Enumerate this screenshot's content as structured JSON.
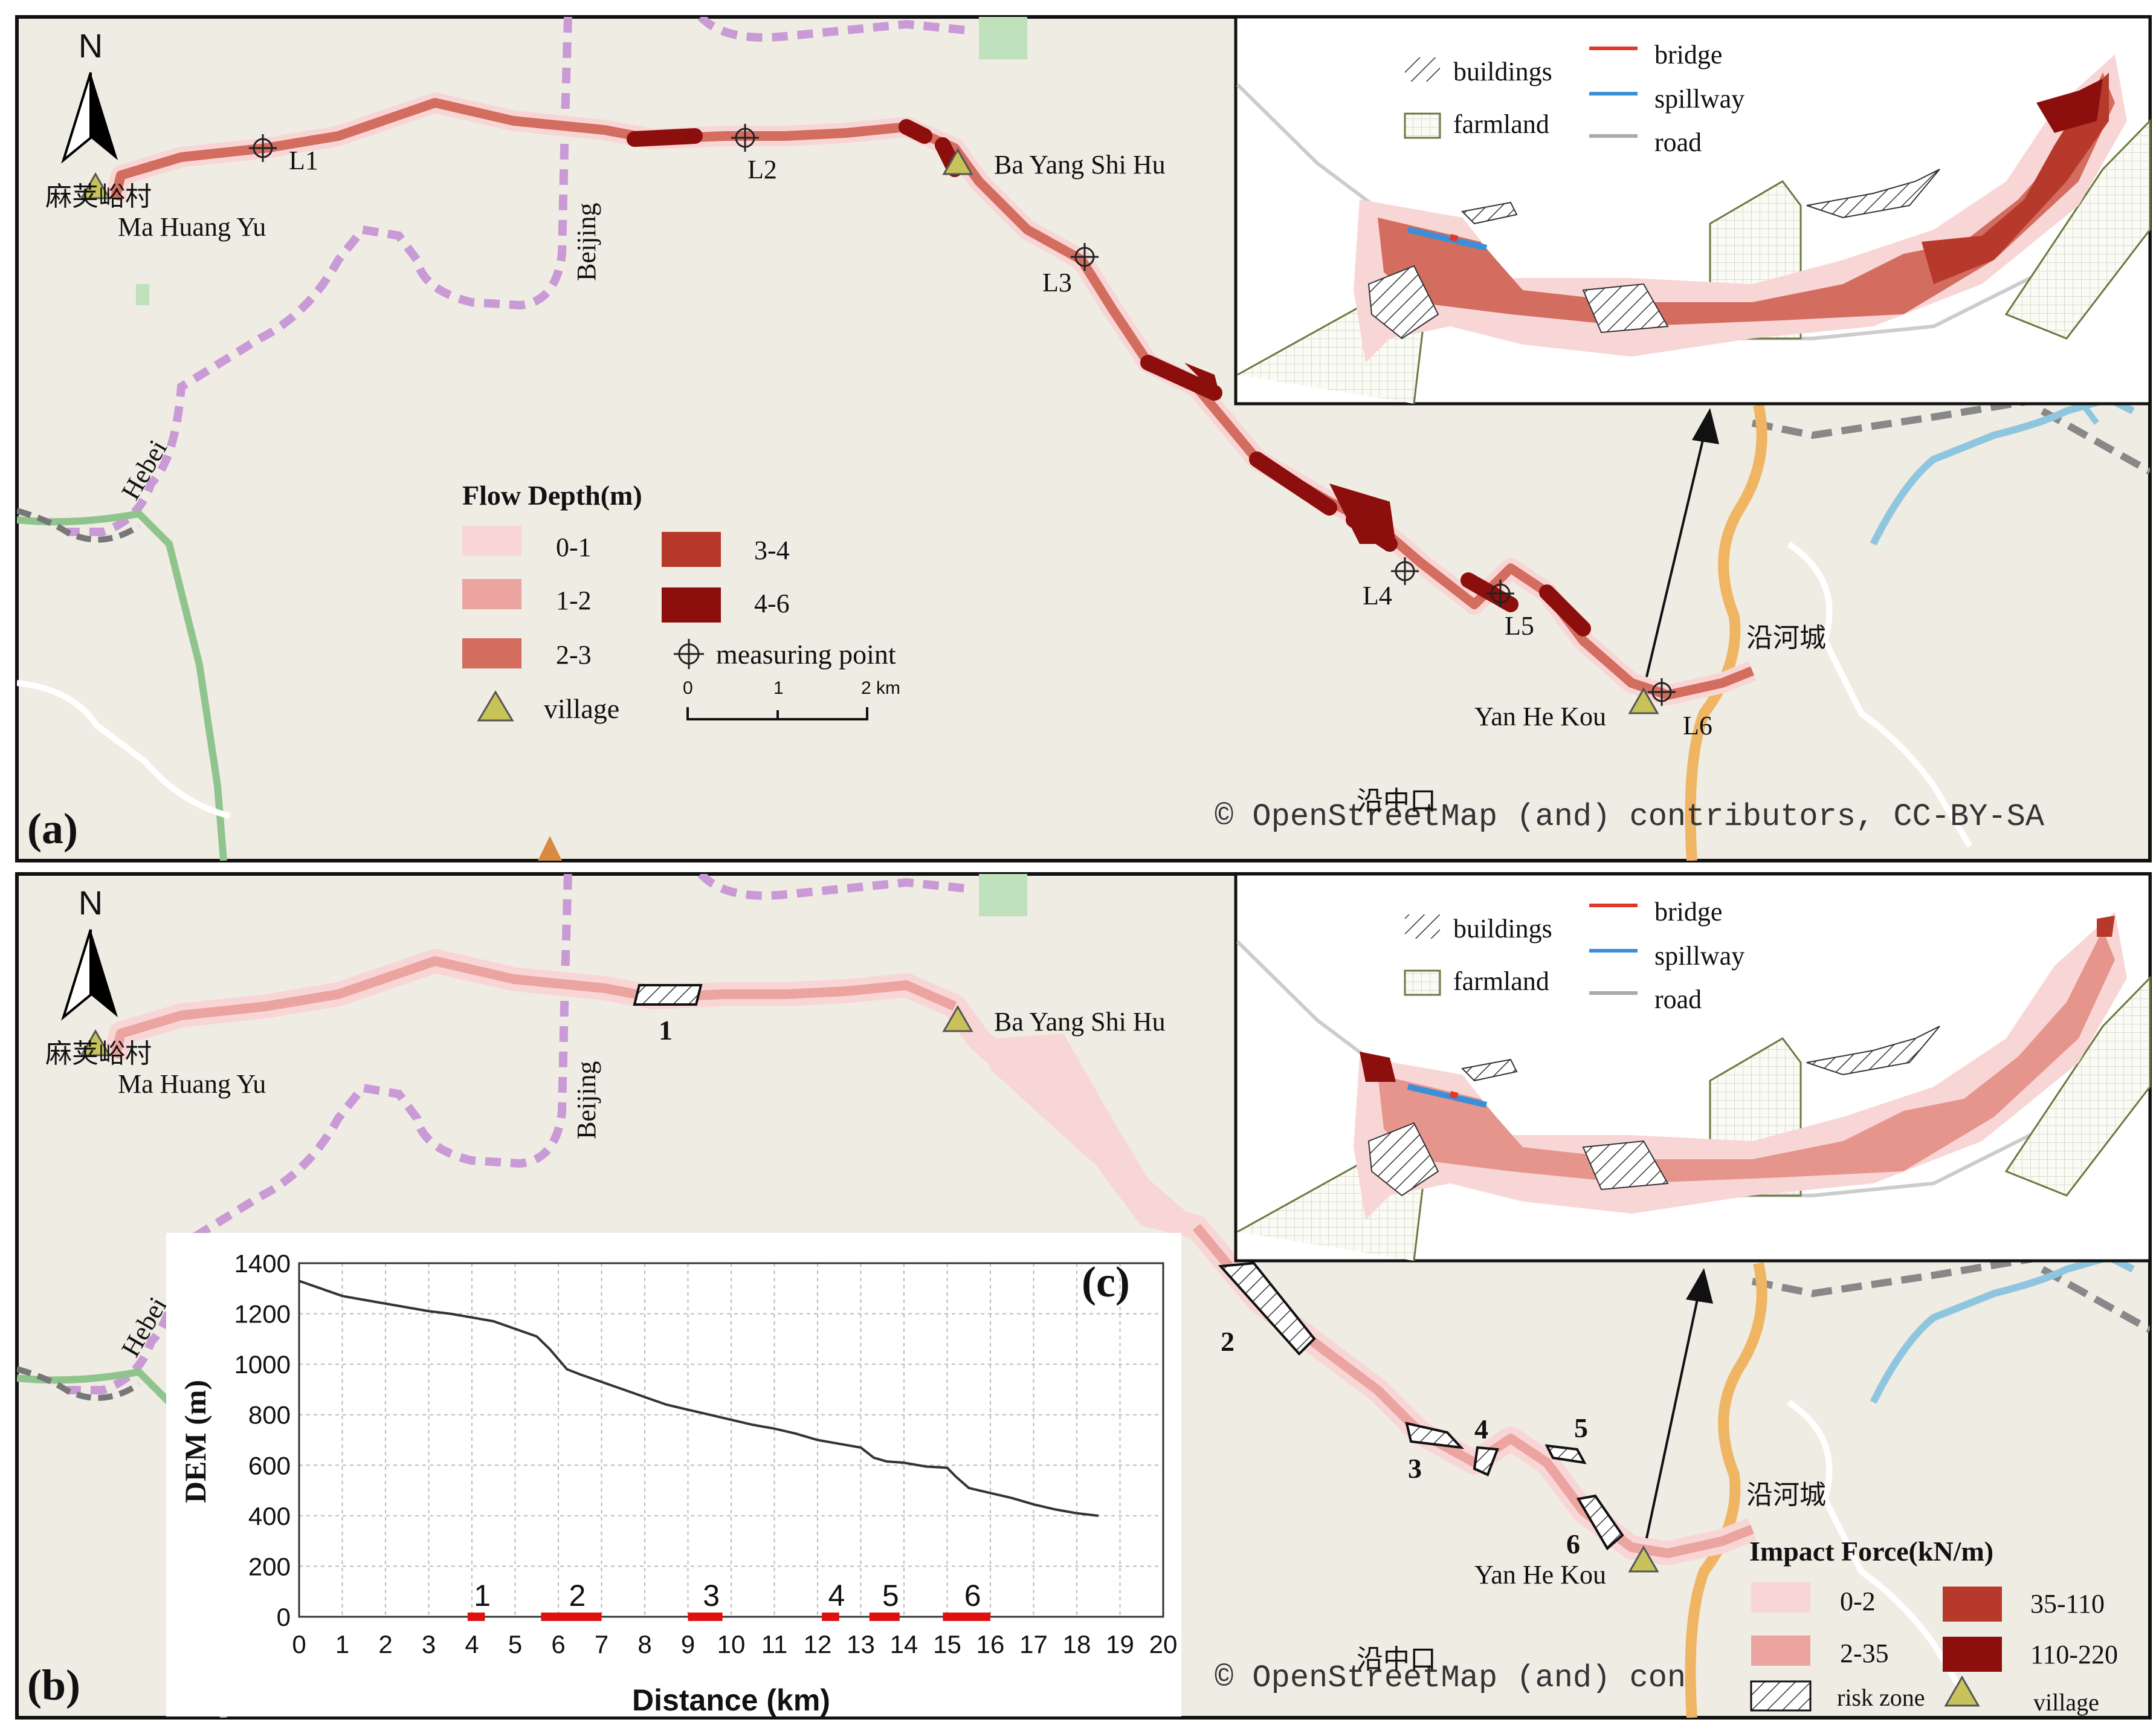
{
  "panel_a": {
    "label": "(a)",
    "north": "N",
    "places": {
      "ma_huang_yu_cn": "麻荚峪村",
      "ma_huang_yu": "Ma Huang Yu",
      "ba_yang_shi_hu": "Ba Yang Shi Hu",
      "yan_he_kou": "Yan He Kou",
      "yan_he_cheng_cn": "沿河城",
      "zhai_kou_cn": "沿中口",
      "beijing": "Beijing",
      "hebei": "Hebei"
    },
    "measuring_points": [
      "L1",
      "L2",
      "L3",
      "L4",
      "L5",
      "L6"
    ],
    "legend": {
      "title": "Flow Depth(m)",
      "classes": [
        {
          "label": "0-1",
          "color": "#f9d6d6"
        },
        {
          "label": "1-2",
          "color": "#eba4a0"
        },
        {
          "label": "2-3",
          "color": "#d36d60"
        },
        {
          "label": "3-4",
          "color": "#b6392c"
        },
        {
          "label": "4-6",
          "color": "#8c0f0d"
        }
      ],
      "measuring_point": "measuring point",
      "village": "village",
      "scale_ticks": [
        "0",
        "1",
        "2 km"
      ]
    },
    "inset": {
      "buildings": "buildings",
      "farmland": "farmland",
      "bridge": "bridge",
      "spillway": "spillway",
      "road": "road"
    },
    "attribution": "© OpenStreetMap (and) contributors, CC-BY-SA"
  },
  "panel_b": {
    "label": "(b)",
    "north": "N",
    "places": {
      "ma_huang_yu_cn": "麻荚峪村",
      "ma_huang_yu": "Ma Huang Yu",
      "ba_yang_shi_hu": "Ba Yang Shi Hu",
      "yan_he_kou": "Yan He Kou",
      "yan_he_cheng_cn": "沿河城",
      "zhai_kou_cn": "沿中口",
      "beijing": "Beijing",
      "hebei": "Hebei"
    },
    "risk_zones": [
      "1",
      "2",
      "3",
      "4",
      "5",
      "6"
    ],
    "legend": {
      "title": "Impact Force(kN/m)",
      "classes": [
        {
          "label": "0-2",
          "color": "#f9d6d6"
        },
        {
          "label": "2-35",
          "color": "#eba4a0"
        },
        {
          "label": "35-110",
          "color": "#b6392c"
        },
        {
          "label": "110-220",
          "color": "#8c0f0d"
        }
      ],
      "risk_zone": "risk zone",
      "village": "village"
    },
    "inset": {
      "buildings": "buildings",
      "farmland": "farmland",
      "bridge": "bridge",
      "spillway": "spillway",
      "road": "road"
    },
    "attribution": "© OpenStreetMap (and) con"
  },
  "chart_data": {
    "type": "line",
    "label": "(c)",
    "xlabel": "Distance (km)",
    "ylabel": "DEM (m)",
    "xlim": [
      0,
      20
    ],
    "ylim": [
      0,
      1400
    ],
    "xticks": [
      0,
      1,
      2,
      3,
      4,
      5,
      6,
      7,
      8,
      9,
      10,
      11,
      12,
      13,
      14,
      15,
      16,
      17,
      18,
      19,
      20
    ],
    "yticks": [
      0,
      200,
      400,
      600,
      800,
      1000,
      1200,
      1400
    ],
    "grid": true,
    "series": [
      {
        "name": "DEM",
        "x": [
          0,
          0.5,
          1,
          1.5,
          2,
          2.5,
          3,
          3.5,
          4,
          4.5,
          5,
          5.5,
          5.8,
          6,
          6.2,
          6.5,
          7,
          7.5,
          8,
          8.5,
          9,
          9.5,
          10,
          10.5,
          11,
          11.5,
          12,
          12.5,
          13,
          13.3,
          13.6,
          14,
          14.5,
          15,
          15.2,
          15.5,
          16,
          16.5,
          17,
          17.5,
          18,
          18.5
        ],
        "y": [
          1330,
          1300,
          1270,
          1255,
          1240,
          1225,
          1210,
          1200,
          1185,
          1170,
          1140,
          1110,
          1060,
          1020,
          980,
          960,
          930,
          900,
          870,
          840,
          820,
          800,
          780,
          760,
          745,
          725,
          700,
          685,
          670,
          630,
          615,
          610,
          595,
          590,
          555,
          510,
          490,
          470,
          445,
          425,
          410,
          400
        ]
      }
    ],
    "risk_segments": [
      {
        "label": "1",
        "start": 3.9,
        "end": 4.3
      },
      {
        "label": "2",
        "start": 5.6,
        "end": 7.0
      },
      {
        "label": "3",
        "start": 9.0,
        "end": 9.8
      },
      {
        "label": "4",
        "start": 12.1,
        "end": 12.5
      },
      {
        "label": "5",
        "start": 13.2,
        "end": 13.9
      },
      {
        "label": "6",
        "start": 14.9,
        "end": 16.0
      }
    ]
  },
  "colors": {
    "map_bg": "#efece4",
    "border_dashed": "#c99ad6",
    "green_road": "#8fc58d",
    "orange_road": "#f0b562",
    "blue_river": "#8fc6df",
    "village_fill": "#c7c35a",
    "risk_red": "#e01010"
  }
}
